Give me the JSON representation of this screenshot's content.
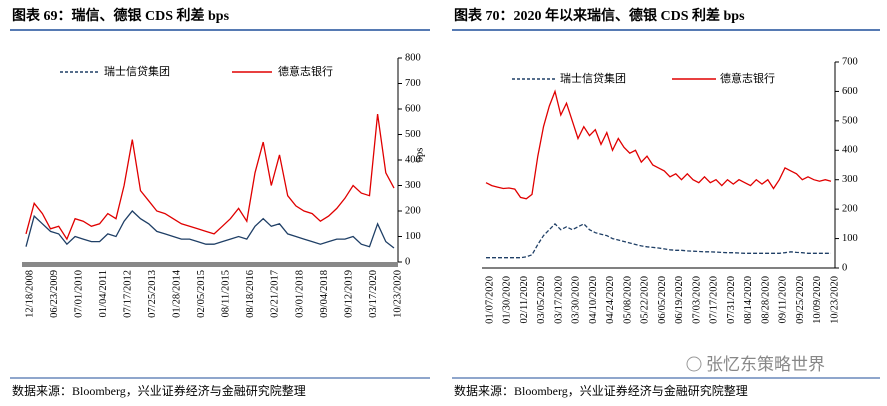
{
  "chart_data": [
    {
      "type": "line",
      "title": "图表 69：瑞信、德银 CDS 利差 bps",
      "y_label": "bps",
      "source": "数据来源：Bloomberg，兴业证券经济与金融研究院整理",
      "categories": [
        "12/18/2008",
        null,
        null,
        "06/23/2009",
        null,
        null,
        "07/01/2010",
        null,
        null,
        "01/04/2011",
        null,
        null,
        "07/17/2012",
        null,
        null,
        "07/25/2013",
        null,
        null,
        "01/28/2014",
        null,
        null,
        "02/05/2015",
        null,
        null,
        "08/11/2015",
        null,
        null,
        "08/18/2016",
        null,
        null,
        "02/21/2017",
        null,
        null,
        "03/01/2018",
        null,
        null,
        "09/04/2018",
        null,
        null,
        "09/12/2019",
        null,
        null,
        "03/17/2020",
        null,
        null,
        "10/23/2020"
      ],
      "ylim": [
        0,
        800
      ],
      "yticks": [
        0,
        100,
        200,
        300,
        400,
        500,
        600,
        700,
        800
      ],
      "series": [
        {
          "name": "瑞士信贷集团",
          "color": "#1f3f66",
          "values": [
            60,
            180,
            150,
            120,
            110,
            70,
            100,
            90,
            80,
            80,
            110,
            100,
            160,
            200,
            170,
            150,
            120,
            110,
            100,
            90,
            90,
            80,
            70,
            70,
            80,
            90,
            100,
            90,
            140,
            170,
            140,
            150,
            110,
            100,
            90,
            80,
            70,
            80,
            90,
            90,
            100,
            70,
            60,
            150,
            80,
            55
          ]
        },
        {
          "name": "德意志银行",
          "color": "#e00000",
          "values": [
            110,
            230,
            190,
            130,
            140,
            90,
            170,
            160,
            140,
            150,
            190,
            170,
            300,
            480,
            280,
            240,
            200,
            190,
            170,
            150,
            140,
            130,
            120,
            110,
            140,
            170,
            210,
            160,
            350,
            470,
            300,
            420,
            260,
            220,
            200,
            190,
            160,
            180,
            210,
            250,
            300,
            270,
            260,
            580,
            350,
            290
          ]
        }
      ]
    },
    {
      "type": "line",
      "title": "图表 70：2020 年以来瑞信、德银 CDS 利差  bps",
      "source": "数据来源：Bloomberg，兴业证券经济与金融研究院整理",
      "watermark": "张忆东策略世界",
      "categories": [
        "01/07/2020",
        null,
        null,
        "01/30/2020",
        null,
        null,
        "02/11/2020",
        null,
        null,
        "03/05/2020",
        null,
        null,
        "03/17/2020",
        null,
        null,
        "03/30/2020",
        null,
        null,
        "04/10/2020",
        null,
        null,
        "04/24/2020",
        null,
        null,
        "05/08/2020",
        null,
        null,
        "05/22/2020",
        null,
        null,
        "06/05/2020",
        null,
        null,
        "06/19/2020",
        null,
        null,
        "07/03/2020",
        null,
        null,
        "07/17/2020",
        null,
        null,
        "07/31/2020",
        null,
        null,
        "08/14/2020",
        null,
        null,
        "08/28/2020",
        null,
        null,
        "09/11/2020",
        null,
        null,
        "09/25/2020",
        null,
        null,
        "10/09/2020",
        null,
        null,
        "10/23/2020"
      ],
      "ylim": [
        0,
        700
      ],
      "yticks": [
        0,
        100,
        200,
        300,
        400,
        500,
        600,
        700
      ],
      "series": [
        {
          "name": "瑞士信贷集团",
          "color": "#1f3f66",
          "linestyle": "dashed",
          "values": [
            35,
            35,
            35,
            35,
            35,
            35,
            35,
            38,
            45,
            80,
            110,
            130,
            150,
            130,
            140,
            130,
            140,
            150,
            130,
            120,
            115,
            110,
            100,
            95,
            90,
            85,
            80,
            75,
            72,
            70,
            68,
            65,
            62,
            60,
            60,
            58,
            57,
            56,
            55,
            55,
            54,
            53,
            52,
            52,
            51,
            50,
            50,
            50,
            50,
            50,
            50,
            50,
            52,
            55,
            53,
            52,
            50,
            50,
            50,
            50,
            50
          ]
        },
        {
          "name": "德意志银行",
          "color": "#e00000",
          "linestyle": "solid",
          "values": [
            290,
            280,
            275,
            270,
            272,
            268,
            240,
            235,
            250,
            380,
            480,
            550,
            600,
            520,
            560,
            500,
            440,
            480,
            450,
            470,
            420,
            460,
            400,
            440,
            410,
            390,
            400,
            360,
            380,
            350,
            340,
            330,
            310,
            320,
            300,
            320,
            300,
            290,
            310,
            290,
            300,
            280,
            300,
            285,
            300,
            290,
            280,
            300,
            285,
            300,
            270,
            300,
            340,
            330,
            320,
            300,
            310,
            300,
            295,
            300,
            295
          ]
        }
      ]
    }
  ]
}
